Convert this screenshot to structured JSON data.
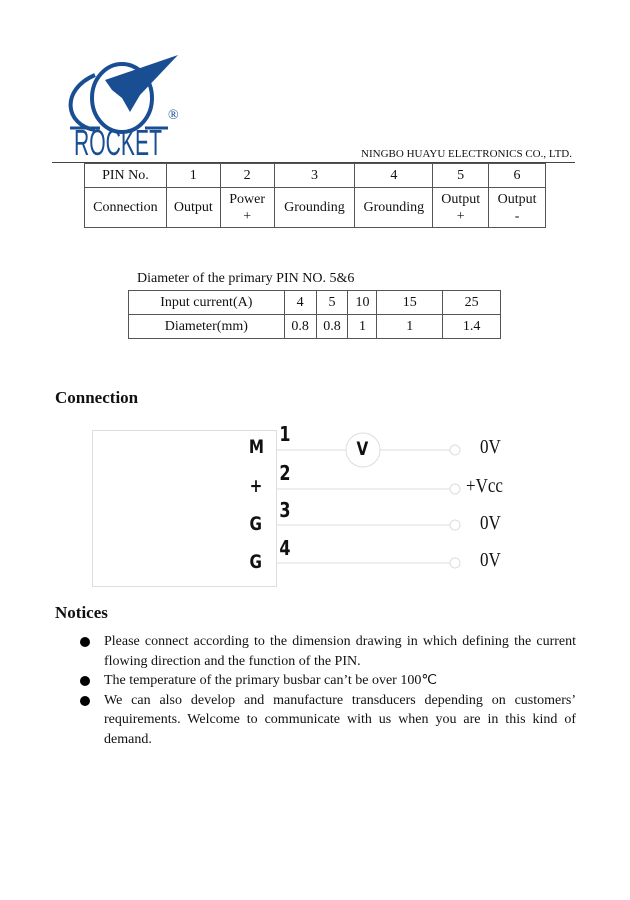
{
  "header": {
    "logo_text": "ROCKET",
    "registered_mark": "®",
    "company": "NINGBO HUAYU ELECTRONICS CO., LTD.",
    "brand_color": "#1a4e93"
  },
  "pin_table": {
    "row1": [
      "PIN No.",
      "1",
      "2",
      "3",
      "4",
      "5",
      "6"
    ],
    "row2": [
      [
        "Connection"
      ],
      [
        "Output"
      ],
      [
        "Power",
        "+"
      ],
      [
        "Grounding"
      ],
      [
        "Grounding"
      ],
      [
        "Output",
        "+"
      ],
      [
        "Output",
        "-"
      ]
    ]
  },
  "diameter": {
    "caption": "Diameter of the primary PIN NO. 5&6",
    "row1": [
      "Input current(A)",
      "4",
      "5",
      "10",
      "15",
      "25"
    ],
    "row2": [
      "Diameter(mm)",
      "0.8",
      "0.8",
      "1",
      "1",
      "1.4"
    ]
  },
  "connection": {
    "title": "Connection",
    "labels": [
      "M",
      "+",
      "G",
      "G"
    ],
    "numbers": [
      "1",
      "2",
      "3",
      "4"
    ],
    "meter": "V",
    "outputs": [
      "0V",
      "+Vcc",
      "0V",
      "0V"
    ]
  },
  "notices": {
    "title": "Notices",
    "items": [
      "Please connect according to the dimension drawing in which defining the current flowing direction and the function of the PIN.",
      "The temperature of the primary busbar can’t be over 100℃",
      "We can also develop and manufacture transducers depending on customers’ requirements. Welcome to communicate with us when you are in this kind of demand."
    ]
  }
}
